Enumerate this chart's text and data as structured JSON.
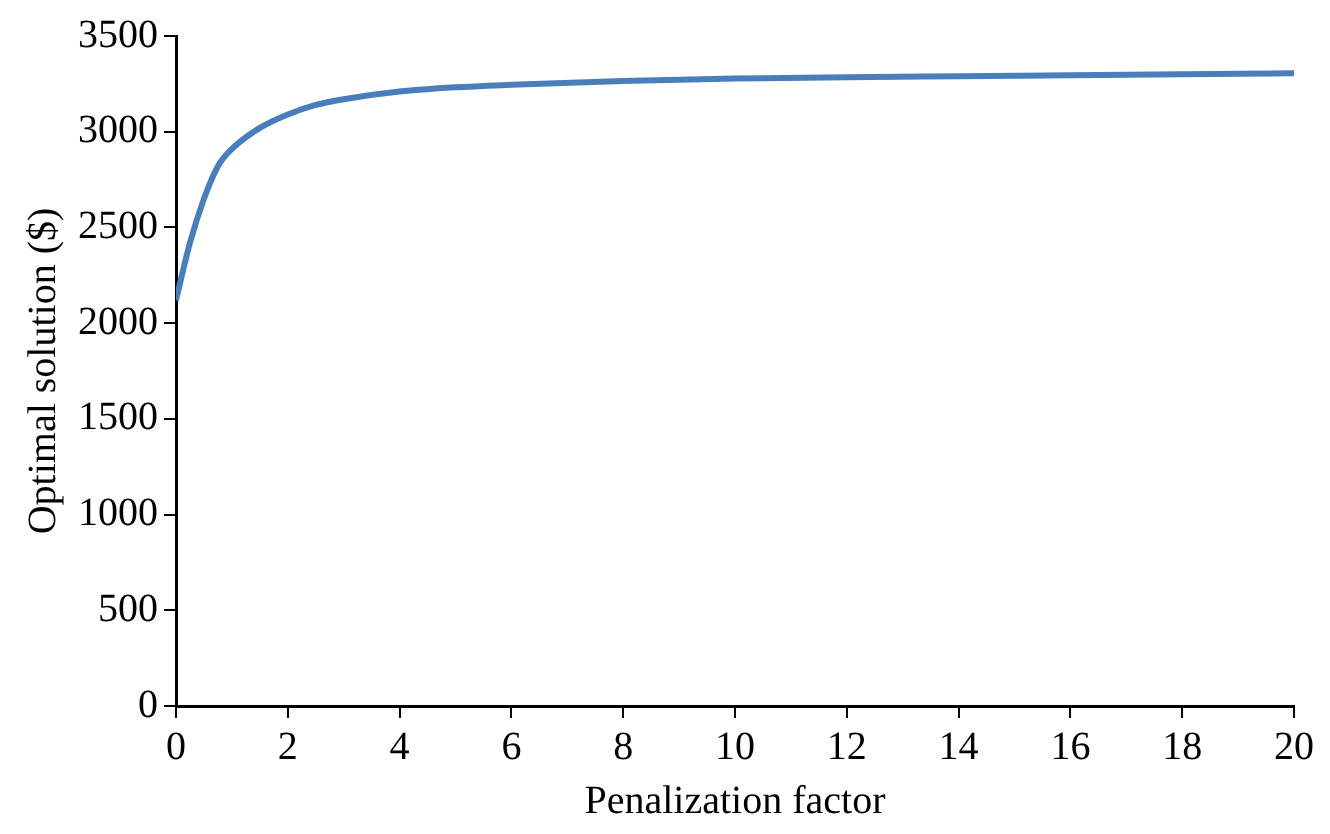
{
  "chart_data": {
    "type": "line",
    "xlabel": "Penalization factor",
    "ylabel": "Optimal solution ($)",
    "x": [
      0,
      0.25,
      0.5,
      0.75,
      1,
      1.5,
      2,
      2.5,
      3,
      4,
      5,
      6,
      8,
      10,
      12,
      14,
      16,
      18,
      20
    ],
    "series": [
      {
        "color": "#4a7ebb",
        "values": [
          2120,
          2420,
          2650,
          2820,
          2910,
          3020,
          3090,
          3140,
          3170,
          3210,
          3232,
          3245,
          3265,
          3278,
          3284,
          3290,
          3295,
          3300,
          3305
        ]
      }
    ],
    "xlim": [
      0,
      20
    ],
    "xticks": [
      0,
      2,
      4,
      6,
      8,
      10,
      12,
      14,
      16,
      18,
      20
    ],
    "ylim": [
      0,
      3500
    ],
    "yticks": [
      0,
      500,
      1000,
      1500,
      2000,
      2500,
      3000,
      3500
    ],
    "grid": false,
    "legend": false,
    "marker": "none",
    "line_style": "solid"
  }
}
